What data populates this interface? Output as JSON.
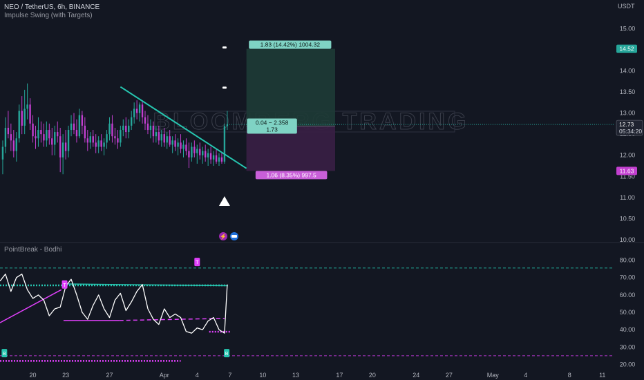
{
  "header": {
    "symbol_line": "NEO / TetherUS, 6h, BINANCE",
    "indicator_line": "Impulse Swing (with Targets)",
    "currency": "USDT"
  },
  "watermark": "BLOOMBERG TRADING",
  "colors": {
    "background": "#131722",
    "bull": "#26a69a",
    "bear": "#c23fcf",
    "teal_line": "#26c6b0",
    "oscillator": "#ffffff",
    "magenta": "#e040fb",
    "target_fill": "#1e3b36",
    "stop_fill": "#3a1f45"
  },
  "chart_data": [
    {
      "type": "candlestick",
      "title": "NEO / TetherUS, 6h, BINANCE",
      "ylim": [
        10.0,
        15.25
      ],
      "y_ticks": [
        10.0,
        10.5,
        11.0,
        11.5,
        12.0,
        12.5,
        13.0,
        13.5,
        14.0,
        14.5,
        15.0
      ],
      "x_ticks": [
        {
          "label": "20",
          "day": 20
        },
        {
          "label": "23",
          "day": 23
        },
        {
          "label": "27",
          "day": 27
        },
        {
          "label": "Apr",
          "day": 32
        },
        {
          "label": "4",
          "day": 35
        },
        {
          "label": "7",
          "day": 38
        },
        {
          "label": "10",
          "day": 41
        },
        {
          "label": "13",
          "day": 44
        },
        {
          "label": "17",
          "day": 48
        },
        {
          "label": "20",
          "day": 51
        },
        {
          "label": "24",
          "day": 55
        },
        {
          "label": "27",
          "day": 58
        },
        {
          "label": "May",
          "day": 62
        },
        {
          "label": "4",
          "day": 65
        },
        {
          "label": "8",
          "day": 69
        },
        {
          "label": "11",
          "day": 72
        }
      ],
      "candles": [
        {
          "d": 17.25,
          "o": 11.9,
          "h": 12.35,
          "l": 11.55,
          "c": 12.2
        },
        {
          "d": 17.5,
          "o": 12.2,
          "h": 12.9,
          "l": 12.05,
          "c": 12.65
        },
        {
          "d": 17.75,
          "o": 12.65,
          "h": 13.05,
          "l": 12.4,
          "c": 12.5
        },
        {
          "d": 18.0,
          "o": 12.5,
          "h": 12.75,
          "l": 12.1,
          "c": 12.35
        },
        {
          "d": 18.25,
          "o": 12.35,
          "h": 12.6,
          "l": 11.95,
          "c": 12.1
        },
        {
          "d": 18.5,
          "o": 12.1,
          "h": 12.55,
          "l": 11.85,
          "c": 12.4
        },
        {
          "d": 18.75,
          "o": 12.4,
          "h": 13.2,
          "l": 12.3,
          "c": 13.05
        },
        {
          "d": 19.0,
          "o": 13.05,
          "h": 13.4,
          "l": 12.5,
          "c": 12.7
        },
        {
          "d": 19.25,
          "o": 12.7,
          "h": 13.55,
          "l": 12.5,
          "c": 13.1
        },
        {
          "d": 19.5,
          "o": 13.1,
          "h": 13.7,
          "l": 12.85,
          "c": 13.2
        },
        {
          "d": 19.75,
          "o": 13.2,
          "h": 13.35,
          "l": 12.6,
          "c": 12.75
        },
        {
          "d": 20.0,
          "o": 12.75,
          "h": 12.95,
          "l": 12.3,
          "c": 12.45
        },
        {
          "d": 20.25,
          "o": 12.45,
          "h": 12.7,
          "l": 12.15,
          "c": 12.4
        },
        {
          "d": 20.5,
          "o": 12.4,
          "h": 12.9,
          "l": 12.2,
          "c": 12.6
        },
        {
          "d": 20.75,
          "o": 12.6,
          "h": 12.8,
          "l": 12.3,
          "c": 12.5
        },
        {
          "d": 21.0,
          "o": 12.5,
          "h": 12.75,
          "l": 12.2,
          "c": 12.35
        },
        {
          "d": 21.25,
          "o": 12.35,
          "h": 12.8,
          "l": 12.2,
          "c": 12.6
        },
        {
          "d": 21.5,
          "o": 12.6,
          "h": 12.75,
          "l": 12.25,
          "c": 12.4
        },
        {
          "d": 21.75,
          "o": 12.4,
          "h": 12.65,
          "l": 12.0,
          "c": 12.25
        },
        {
          "d": 22.0,
          "o": 12.25,
          "h": 12.7,
          "l": 12.0,
          "c": 12.55
        },
        {
          "d": 22.25,
          "o": 12.55,
          "h": 12.8,
          "l": 12.3,
          "c": 12.45
        },
        {
          "d": 22.5,
          "o": 12.45,
          "h": 12.65,
          "l": 11.6,
          "c": 11.95
        },
        {
          "d": 22.75,
          "o": 11.95,
          "h": 12.5,
          "l": 11.55,
          "c": 12.3
        },
        {
          "d": 23.0,
          "o": 12.3,
          "h": 12.6,
          "l": 11.9,
          "c": 12.1
        },
        {
          "d": 23.25,
          "o": 12.1,
          "h": 12.7,
          "l": 11.95,
          "c": 12.6
        },
        {
          "d": 23.5,
          "o": 12.6,
          "h": 12.95,
          "l": 12.45,
          "c": 12.75
        },
        {
          "d": 23.75,
          "o": 12.75,
          "h": 13.0,
          "l": 12.5,
          "c": 12.6
        },
        {
          "d": 24.0,
          "o": 12.6,
          "h": 12.85,
          "l": 12.3,
          "c": 12.45
        },
        {
          "d": 24.25,
          "o": 12.45,
          "h": 13.1,
          "l": 12.4,
          "c": 12.95
        },
        {
          "d": 24.5,
          "o": 12.95,
          "h": 13.05,
          "l": 12.5,
          "c": 12.7
        },
        {
          "d": 24.75,
          "o": 12.7,
          "h": 12.9,
          "l": 12.3,
          "c": 12.4
        },
        {
          "d": 25.0,
          "o": 12.4,
          "h": 12.6,
          "l": 12.1,
          "c": 12.3
        },
        {
          "d": 25.25,
          "o": 12.3,
          "h": 12.55,
          "l": 12.15,
          "c": 12.45
        },
        {
          "d": 25.5,
          "o": 12.45,
          "h": 12.6,
          "l": 12.2,
          "c": 12.3
        },
        {
          "d": 25.75,
          "o": 12.3,
          "h": 12.5,
          "l": 12.05,
          "c": 12.2
        },
        {
          "d": 26.0,
          "o": 12.2,
          "h": 12.45,
          "l": 12.05,
          "c": 12.35
        },
        {
          "d": 26.25,
          "o": 12.35,
          "h": 12.5,
          "l": 12.1,
          "c": 12.2
        },
        {
          "d": 26.5,
          "o": 12.2,
          "h": 12.4,
          "l": 12.0,
          "c": 12.3
        },
        {
          "d": 26.75,
          "o": 12.3,
          "h": 12.6,
          "l": 12.15,
          "c": 12.5
        },
        {
          "d": 27.0,
          "o": 12.5,
          "h": 12.9,
          "l": 12.35,
          "c": 12.75
        },
        {
          "d": 27.25,
          "o": 12.75,
          "h": 12.95,
          "l": 12.3,
          "c": 12.45
        },
        {
          "d": 27.5,
          "o": 12.45,
          "h": 12.65,
          "l": 12.25,
          "c": 12.4
        },
        {
          "d": 27.75,
          "o": 12.4,
          "h": 12.6,
          "l": 12.15,
          "c": 12.3
        },
        {
          "d": 28.0,
          "o": 12.3,
          "h": 12.7,
          "l": 12.2,
          "c": 12.6
        },
        {
          "d": 28.25,
          "o": 12.6,
          "h": 12.85,
          "l": 12.45,
          "c": 12.7
        },
        {
          "d": 28.5,
          "o": 12.7,
          "h": 12.9,
          "l": 12.4,
          "c": 12.55
        },
        {
          "d": 28.75,
          "o": 12.55,
          "h": 12.85,
          "l": 12.4,
          "c": 12.7
        },
        {
          "d": 29.0,
          "o": 12.7,
          "h": 13.05,
          "l": 12.6,
          "c": 12.9
        },
        {
          "d": 29.25,
          "o": 12.9,
          "h": 13.25,
          "l": 12.75,
          "c": 13.1
        },
        {
          "d": 29.5,
          "o": 13.1,
          "h": 13.3,
          "l": 12.85,
          "c": 13.0
        },
        {
          "d": 29.75,
          "o": 13.0,
          "h": 13.25,
          "l": 12.8,
          "c": 13.2
        },
        {
          "d": 30.0,
          "o": 13.2,
          "h": 13.3,
          "l": 12.75,
          "c": 12.9
        },
        {
          "d": 30.25,
          "o": 12.9,
          "h": 13.05,
          "l": 12.6,
          "c": 12.75
        },
        {
          "d": 30.5,
          "o": 12.75,
          "h": 12.95,
          "l": 12.5,
          "c": 12.6
        },
        {
          "d": 30.75,
          "o": 12.6,
          "h": 12.85,
          "l": 12.4,
          "c": 12.7
        },
        {
          "d": 31.0,
          "o": 12.7,
          "h": 12.8,
          "l": 12.3,
          "c": 12.45
        },
        {
          "d": 31.25,
          "o": 12.45,
          "h": 12.7,
          "l": 12.3,
          "c": 12.55
        },
        {
          "d": 31.5,
          "o": 12.55,
          "h": 12.7,
          "l": 12.25,
          "c": 12.35
        },
        {
          "d": 31.75,
          "o": 12.35,
          "h": 12.6,
          "l": 12.2,
          "c": 12.5
        },
        {
          "d": 32.0,
          "o": 12.5,
          "h": 12.65,
          "l": 12.2,
          "c": 12.3
        },
        {
          "d": 32.25,
          "o": 12.3,
          "h": 12.55,
          "l": 12.15,
          "c": 12.45
        },
        {
          "d": 32.5,
          "o": 12.45,
          "h": 12.6,
          "l": 12.2,
          "c": 12.25
        },
        {
          "d": 32.75,
          "o": 12.25,
          "h": 12.45,
          "l": 12.05,
          "c": 12.35
        },
        {
          "d": 33.0,
          "o": 12.35,
          "h": 12.5,
          "l": 12.1,
          "c": 12.2
        },
        {
          "d": 33.25,
          "o": 12.2,
          "h": 12.4,
          "l": 12.0,
          "c": 12.3
        },
        {
          "d": 33.5,
          "o": 12.3,
          "h": 12.5,
          "l": 12.05,
          "c": 12.15
        },
        {
          "d": 33.75,
          "o": 12.15,
          "h": 12.35,
          "l": 11.95,
          "c": 12.25
        },
        {
          "d": 34.0,
          "o": 12.25,
          "h": 12.4,
          "l": 12.0,
          "c": 12.1
        },
        {
          "d": 34.25,
          "o": 12.1,
          "h": 12.3,
          "l": 11.7,
          "c": 11.95
        },
        {
          "d": 34.5,
          "o": 11.95,
          "h": 12.3,
          "l": 11.85,
          "c": 12.2
        },
        {
          "d": 34.75,
          "o": 12.2,
          "h": 12.35,
          "l": 11.95,
          "c": 12.05
        },
        {
          "d": 35.0,
          "o": 12.05,
          "h": 12.25,
          "l": 11.8,
          "c": 12.15
        },
        {
          "d": 35.25,
          "o": 12.15,
          "h": 12.3,
          "l": 11.9,
          "c": 12.0
        },
        {
          "d": 35.5,
          "o": 12.0,
          "h": 12.2,
          "l": 11.8,
          "c": 12.1
        },
        {
          "d": 35.75,
          "o": 12.1,
          "h": 12.25,
          "l": 11.85,
          "c": 11.95
        },
        {
          "d": 36.0,
          "o": 11.95,
          "h": 12.15,
          "l": 11.75,
          "c": 12.05
        },
        {
          "d": 36.25,
          "o": 12.05,
          "h": 12.2,
          "l": 11.8,
          "c": 11.9
        },
        {
          "d": 36.5,
          "o": 11.9,
          "h": 12.1,
          "l": 11.75,
          "c": 12.0
        },
        {
          "d": 36.75,
          "o": 12.0,
          "h": 12.15,
          "l": 11.8,
          "c": 11.85
        },
        {
          "d": 37.0,
          "o": 11.85,
          "h": 12.05,
          "l": 11.75,
          "c": 11.95
        },
        {
          "d": 37.25,
          "o": 11.95,
          "h": 12.05,
          "l": 11.8,
          "c": 11.85
        },
        {
          "d": 37.5,
          "o": 11.85,
          "h": 12.75,
          "l": 11.8,
          "c": 12.69
        },
        {
          "d": 37.75,
          "o": 12.69,
          "h": 13.05,
          "l": 12.6,
          "c": 12.73
        }
      ],
      "trendline": {
        "from": {
          "d": 28.0,
          "v": 13.62
        },
        "to": {
          "d": 39.5,
          "v": 11.69
        }
      },
      "position": {
        "start_day": 39.5,
        "end_day": 47.6,
        "target": 14.52,
        "entry": 12.69,
        "stop": 11.63
      },
      "target_label": "1.83 (14.42%) 1004.32",
      "entry_label_line1": "0.04 − 2.358",
      "entry_label_line2": "1.73",
      "stop_label": "1.06 (8.35%) 997.5",
      "signal_marks": [
        {
          "d": 37.5,
          "v": 14.55
        },
        {
          "d": 37.5,
          "v": 13.6
        }
      ],
      "buy_arrow": {
        "d": 37.5,
        "v": 10.9
      },
      "current_price": "12.73",
      "countdown": "05:34:20",
      "price_badges": [
        {
          "value": "14.52",
          "v": 14.52,
          "color": "#26a69a"
        },
        {
          "value": "12.69",
          "v": 12.69,
          "color": "#26a69a"
        },
        {
          "value": "11.63",
          "v": 11.63,
          "color": "#c23fcf"
        }
      ]
    },
    {
      "type": "line",
      "title": "PointBreak - Bodhi",
      "ylim": [
        17.0,
        85.0
      ],
      "y_ticks": [
        20.0,
        30.0,
        40.0,
        50.0,
        60.0,
        70.0,
        80.0
      ],
      "series": [
        {
          "x": [
            17.0,
            17.5,
            18.0,
            18.5,
            19.0,
            19.5,
            20.0,
            20.5,
            21.0,
            21.5,
            22.0,
            22.5,
            23.0,
            23.5,
            24.0,
            24.5,
            25.0,
            25.5,
            26.0,
            26.5,
            27.0,
            27.5,
            28.0,
            28.5,
            29.0,
            29.5,
            30.0,
            30.5,
            31.0,
            31.5,
            32.0,
            32.5,
            33.0,
            33.5,
            34.0,
            34.5,
            35.0,
            35.5,
            36.0,
            36.5,
            37.0,
            37.5,
            37.75
          ],
          "values": [
            68,
            72,
            62,
            70,
            72,
            63,
            58,
            60,
            57,
            48,
            52,
            53,
            65,
            69,
            60,
            50,
            46,
            54,
            60,
            52,
            47,
            57,
            61,
            51,
            56,
            62,
            66,
            52,
            46,
            43,
            52,
            47,
            49,
            47,
            39,
            38,
            41,
            40,
            45,
            47,
            40,
            38,
            66
          ]
        }
      ],
      "levels": [
        {
          "v": 75.5,
          "style": "dashed",
          "color": "teal"
        },
        {
          "v": 25.0,
          "style": "dashed",
          "color": "magenta"
        }
      ],
      "segments": [
        {
          "from": {
            "d": 17.0,
            "v": 65.5
          },
          "to": {
            "d": 37.8,
            "v": 65.5
          },
          "style": "dotted",
          "color": "teal"
        },
        {
          "from": {
            "d": 23.2,
            "v": 66.3
          },
          "to": {
            "d": 37.8,
            "v": 65.3
          },
          "style": "solid",
          "color": "teal"
        },
        {
          "from": {
            "d": 22.8,
            "v": 45.3
          },
          "to": {
            "d": 27.9,
            "v": 45.3
          },
          "style": "solid",
          "color": "magenta"
        },
        {
          "from": {
            "d": 27.9,
            "v": 45.3
          },
          "to": {
            "d": 37.5,
            "v": 46.5
          },
          "style": "dashed",
          "color": "magenta"
        },
        {
          "from": {
            "d": 36.1,
            "v": 38.8
          },
          "to": {
            "d": 38.0,
            "v": 38.8
          },
          "style": "dotted",
          "color": "magenta"
        },
        {
          "from": {
            "d": 17.0,
            "v": 22.0
          },
          "to": {
            "d": 33.5,
            "v": 22.0
          },
          "style": "dotted",
          "color": "magenta"
        },
        {
          "from": {
            "d": 17.0,
            "v": 44.0
          },
          "to": {
            "d": 22.6,
            "v": 63.0
          },
          "style": "solid",
          "color": "magenta"
        }
      ],
      "markers": [
        {
          "d": 35.0,
          "v": 79.0,
          "color": "magenta",
          "text": "T"
        },
        {
          "d": 22.9,
          "v": 66.0,
          "color": "magenta",
          "text": "T"
        },
        {
          "d": 17.4,
          "v": 26.5,
          "color": "teal",
          "text": "B"
        },
        {
          "d": 37.7,
          "v": 26.5,
          "color": "teal",
          "text": "B"
        }
      ]
    }
  ]
}
